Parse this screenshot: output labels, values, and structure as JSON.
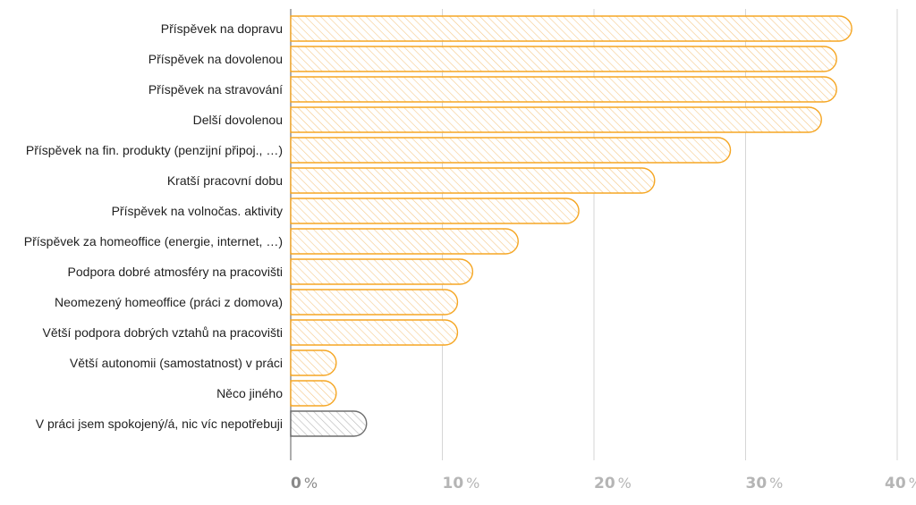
{
  "chart_data": {
    "type": "bar",
    "orientation": "horizontal",
    "categories": [
      "Příspěvek na dopravu",
      "Příspěvek na dovolenou",
      "Příspěvek na stravování",
      "Delší dovolenou",
      "Příspěvek na fin. produkty (penzijní připoj., …)",
      "Kratší pracovní dobu",
      "Příspěvek na volnočas. aktivity",
      "Příspěvek za homeoffice (energie, internet, …)",
      "Podpora dobré atmosféry na pracovišti",
      "Neomezený homeoffice (práci z domova)",
      "Větší podpora dobrých vztahů na pracovišti",
      "Větší autonomii (samostatnost) v práci",
      "Něco jiného",
      "V práci jsem spokojený/á, nic víc nepotřebuji"
    ],
    "values": [
      37,
      36,
      36,
      35,
      29,
      24,
      19,
      15,
      12,
      11,
      11,
      3,
      3,
      5
    ],
    "xlim": [
      0,
      40
    ],
    "ticks": [
      {
        "num": "0",
        "unit": "%"
      },
      {
        "num": "10",
        "unit": "%"
      },
      {
        "num": "20",
        "unit": "%"
      },
      {
        "num": "30",
        "unit": "%"
      },
      {
        "num": "40",
        "unit": "%"
      }
    ],
    "grid": true,
    "colors": {
      "bar_stroke": "#f5a623",
      "bar_hatch": "#f5c98a",
      "neutral_stroke": "#6f6f6f",
      "neutral_hatch": "#b9b9b9",
      "grid": "#d6d6d6"
    },
    "neutral_index": 13
  }
}
